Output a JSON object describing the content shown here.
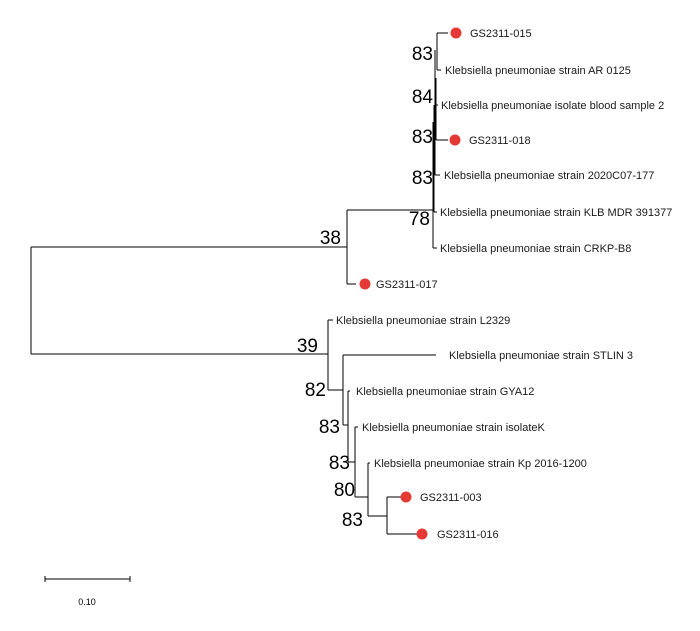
{
  "colors": {
    "marker": "#e53935",
    "branch": "#000000"
  },
  "leaves": {
    "gs015": {
      "label": "GS2311-015",
      "marked": true
    },
    "ar0125": {
      "label": "Klebsiella pneumoniae strain AR 0125",
      "marked": false
    },
    "blood2": {
      "label": "Klebsiella pneumoniae isolate blood sample 2",
      "marked": false
    },
    "gs018": {
      "label": "GS2311-018",
      "marked": true
    },
    "c2020": {
      "label": "Klebsiella pneumoniae strain 2020C07-177",
      "marked": false
    },
    "klb": {
      "label": "Klebsiella pneumoniae strain KLB MDR 391377",
      "marked": false
    },
    "crkp": {
      "label": "Klebsiella pneumoniae strain CRKP-B8",
      "marked": false
    },
    "gs017": {
      "label": "GS2311-017",
      "marked": true
    },
    "l2329": {
      "label": "Klebsiella pneumoniae strain L2329",
      "marked": false
    },
    "stlin": {
      "label": "Klebsiella pneumoniae strain STLIN 3",
      "marked": false
    },
    "gya12": {
      "label": "Klebsiella pneumoniae strain GYA12",
      "marked": false
    },
    "isolk": {
      "label": "Klebsiella pneumoniae strain isolateK",
      "marked": false
    },
    "kp2016": {
      "label": "Klebsiella pneumoniae strain Kp 2016-1200",
      "marked": false
    },
    "gs003": {
      "label": "GS2311-003",
      "marked": true
    },
    "gs016": {
      "label": "GS2311-016",
      "marked": true
    }
  },
  "bootstrap": {
    "n015": "83",
    "n_blood": "84",
    "n018": "83",
    "n2020": "83",
    "n_klb": "78",
    "n_upper": "38",
    "n_lower": "39",
    "n_stlin": "82",
    "n_gya": "83",
    "n_isok": "83",
    "n_kp": "80",
    "n_003_016": "83"
  },
  "scale_bar": {
    "label": "0.10"
  }
}
